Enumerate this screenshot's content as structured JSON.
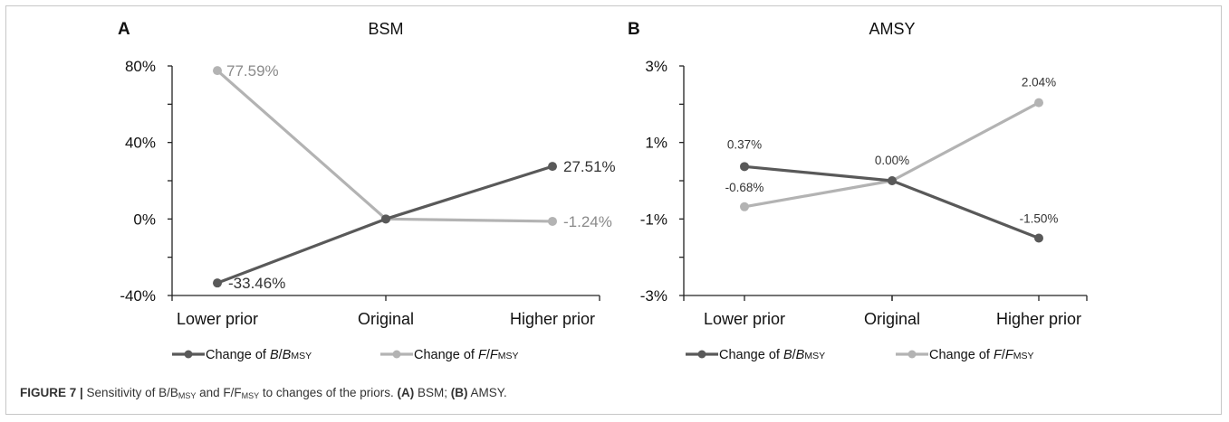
{
  "figure": {
    "caption_label": "FIGURE 7 |",
    "caption_seg1": " Sensitivity of B/B",
    "caption_sub1": "MSY",
    "caption_seg2": " and F/F",
    "caption_sub2": "MSY",
    "caption_seg3": " to changes of the priors. ",
    "caption_a_label": "(A)",
    "caption_a_text": " BSM; ",
    "caption_b_label": "(B)",
    "caption_b_text": " AMSY."
  },
  "colors": {
    "series_b": "#595959",
    "series_f": "#b3b3b3",
    "axis": "#222222"
  },
  "chart_data": [
    {
      "type": "line",
      "panel_label": "A",
      "title": "BSM",
      "categories": [
        "Lower prior",
        "Original",
        "Higher prior"
      ],
      "ylim": [
        -40,
        80
      ],
      "yticks": [
        -40,
        0,
        40,
        80
      ],
      "ytick_labels": [
        "-40%",
        "0%",
        "40%",
        "80%"
      ],
      "grid": false,
      "legend_position": "bottom",
      "series": [
        {
          "name": "Change of B/BMSY",
          "legend_prefix": "Change of ",
          "legend_var": "B",
          "legend_slash": "/",
          "legend_var2": "B",
          "legend_sub": "MSY",
          "values": [
            -33.46,
            0,
            27.51
          ],
          "color": "#595959",
          "labels": [
            "-33.46%",
            "",
            "27.51%"
          ]
        },
        {
          "name": "Change of F/FMSY",
          "legend_prefix": "Change of ",
          "legend_var": "F",
          "legend_slash": "/",
          "legend_var2": "F",
          "legend_sub": "MSY",
          "values": [
            77.59,
            0,
            -1.24
          ],
          "color": "#b3b3b3",
          "labels": [
            "77.59%",
            "",
            "-1.24%"
          ]
        }
      ]
    },
    {
      "type": "line",
      "panel_label": "B",
      "title": "AMSY",
      "categories": [
        "Lower prior",
        "Original",
        "Higher prior"
      ],
      "ylim": [
        -3,
        3
      ],
      "yticks": [
        -3,
        -1,
        1,
        3
      ],
      "ytick_labels": [
        "-3%",
        "-1%",
        "1%",
        "3%"
      ],
      "grid": false,
      "legend_position": "bottom",
      "series": [
        {
          "name": "Change of B/BMSY",
          "legend_prefix": "Change of ",
          "legend_var": "B",
          "legend_slash": "/",
          "legend_var2": "B",
          "legend_sub": "MSY",
          "values": [
            0.37,
            0.0,
            -1.5
          ],
          "color": "#595959",
          "labels": [
            "0.37%",
            "0.00%",
            "-1.50%"
          ]
        },
        {
          "name": "Change of F/FMSY",
          "legend_prefix": "Change of ",
          "legend_var": "F",
          "legend_slash": "/",
          "legend_var2": "F",
          "legend_sub": "MSY",
          "values": [
            -0.68,
            0.0,
            2.04
          ],
          "color": "#b3b3b3",
          "labels": [
            "-0.68%",
            "",
            "2.04%"
          ]
        }
      ]
    }
  ]
}
